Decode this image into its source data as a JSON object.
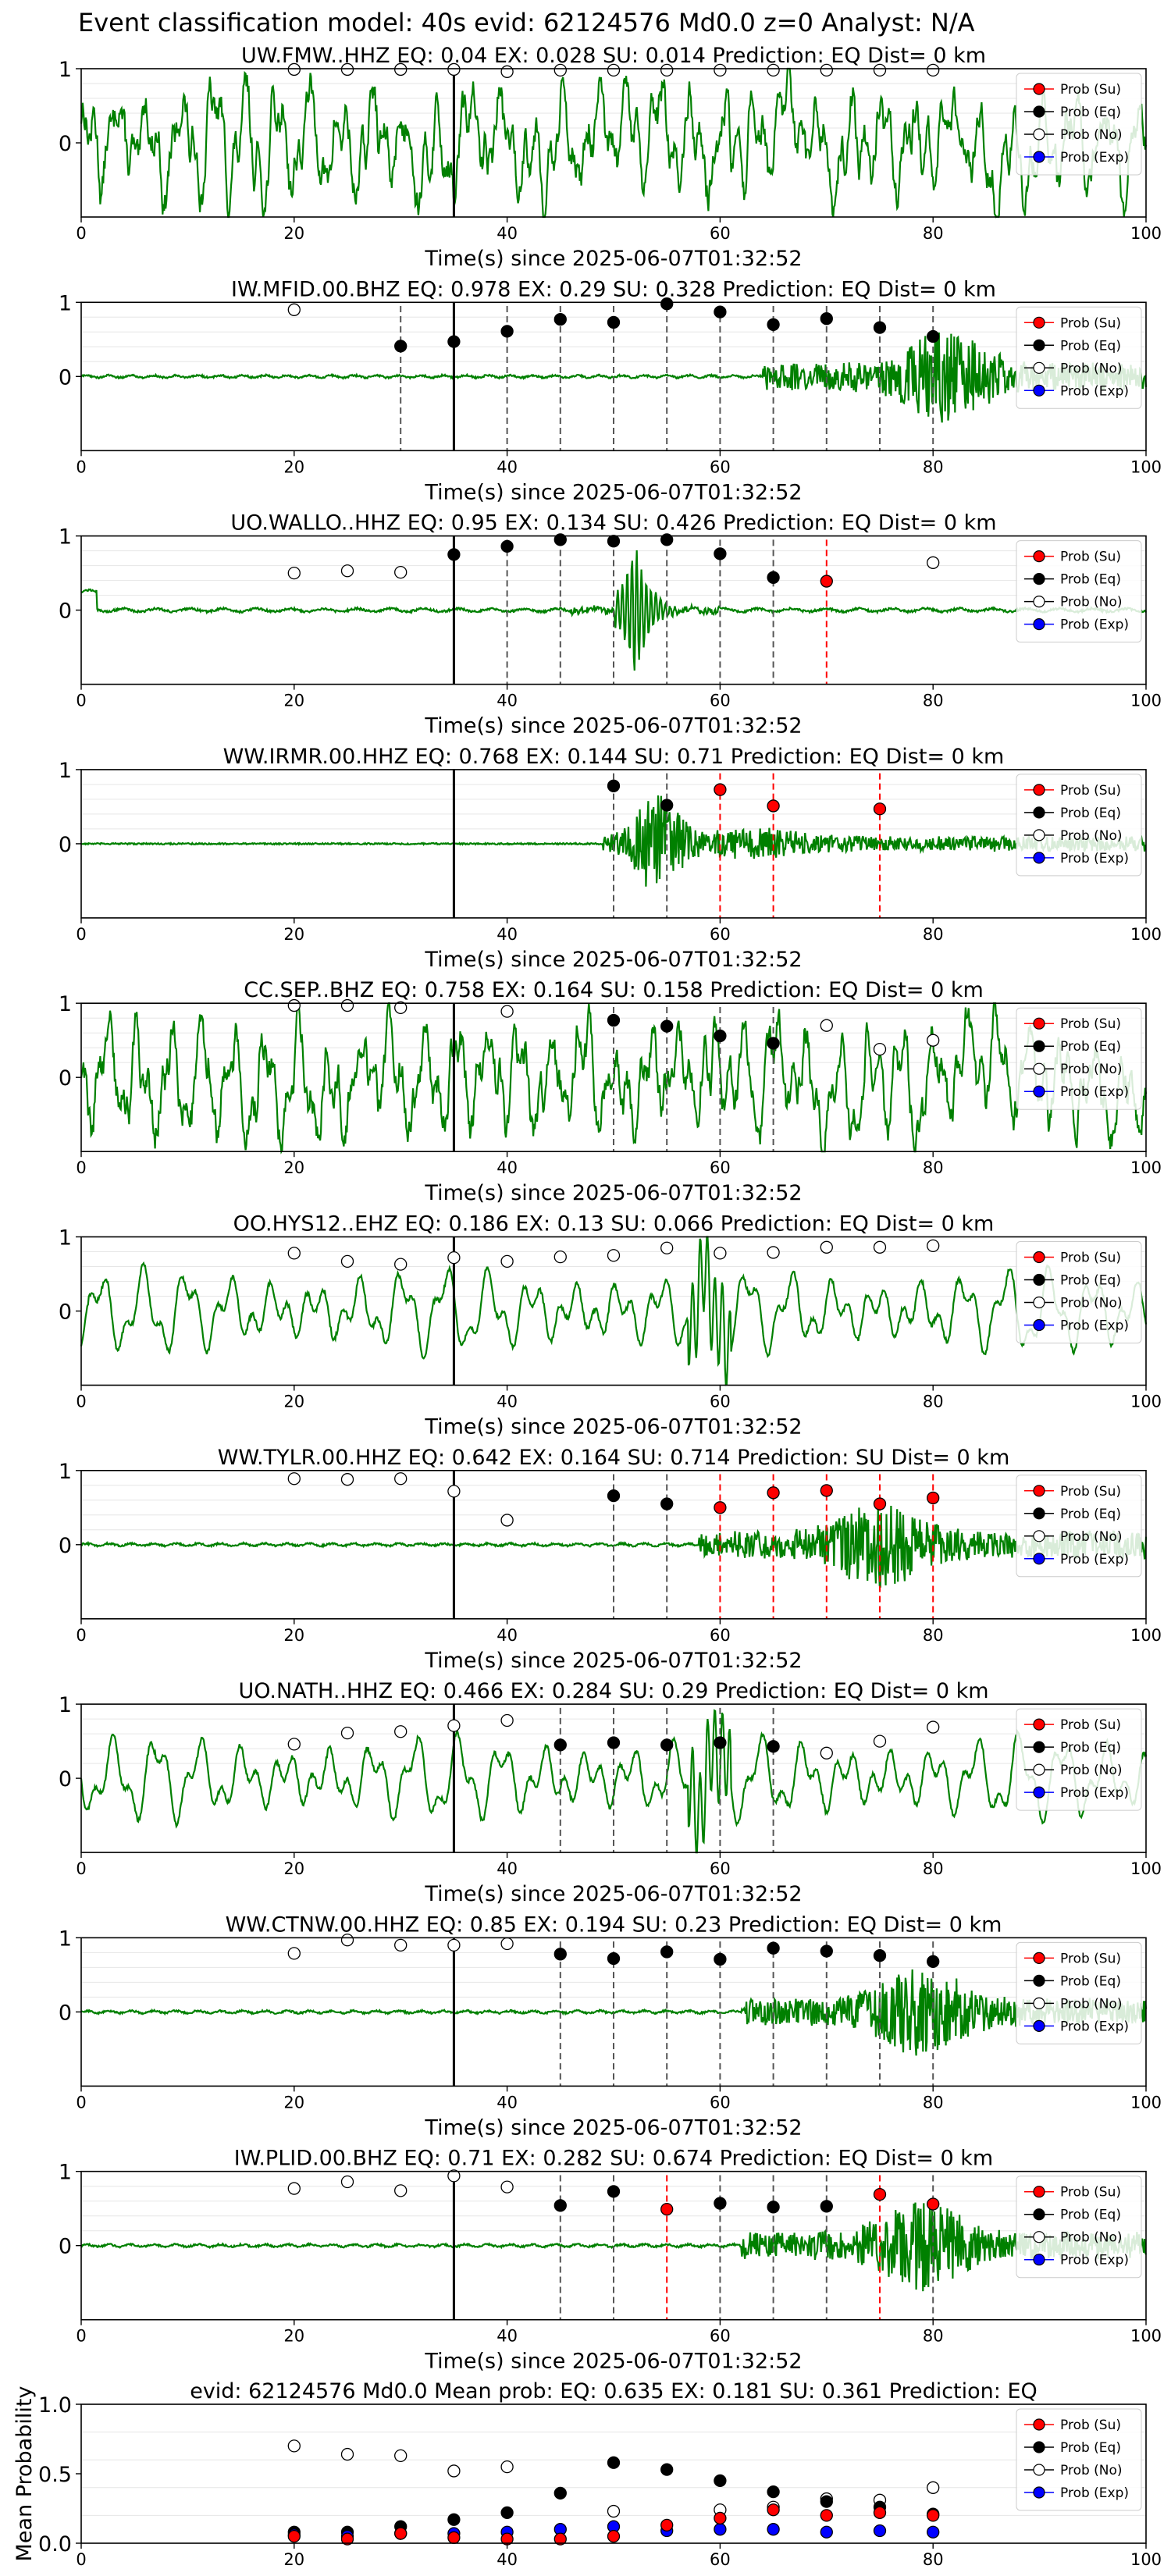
{
  "figure": {
    "title": "Event classification model: 40s evid: 62124576 Md0.0 z=0 Analyst: N/A"
  },
  "legend": {
    "entries": [
      "Prob (Su)",
      "Prob (Eq)",
      "Prob (No)",
      "Prob (Exp)"
    ]
  },
  "colors": {
    "su": "#ff0000",
    "eq": "#000000",
    "no": "#ffffff",
    "exp": "#0000ff",
    "waveform": "#008000",
    "grid": "#e6e6e6",
    "su_line": "#ff0000",
    "eq_line": "#555555"
  },
  "chart_data": [
    {
      "type": "line",
      "title": "UW.FMW..HHZ   EQ: 0.04  EX: 0.028  SU: 0.014   Prediction: EQ    Dist= 0 km",
      "xlabel": "Time(s) since 2025-06-07T01:32:52",
      "ylabel": "",
      "xlim": [
        0,
        100
      ],
      "xticks": [
        0,
        20,
        40,
        60,
        80,
        100
      ],
      "yticks": [
        1,
        0
      ],
      "ylim": [
        -1,
        1
      ],
      "waveform_style": "noisy_high",
      "onset": 0,
      "p_pick": 35,
      "eq_lines": [],
      "su_lines": [],
      "points": [
        {
          "t": 20,
          "cls": "no",
          "p": 0.99
        },
        {
          "t": 25,
          "cls": "no",
          "p": 0.99
        },
        {
          "t": 30,
          "cls": "no",
          "p": 0.99
        },
        {
          "t": 35,
          "cls": "no",
          "p": 0.99
        },
        {
          "t": 40,
          "cls": "no",
          "p": 0.96
        },
        {
          "t": 45,
          "cls": "no",
          "p": 0.98
        },
        {
          "t": 50,
          "cls": "no",
          "p": 0.98
        },
        {
          "t": 55,
          "cls": "no",
          "p": 0.98
        },
        {
          "t": 60,
          "cls": "no",
          "p": 0.98
        },
        {
          "t": 65,
          "cls": "no",
          "p": 0.98
        },
        {
          "t": 70,
          "cls": "no",
          "p": 0.98
        },
        {
          "t": 75,
          "cls": "no",
          "p": 0.98
        },
        {
          "t": 80,
          "cls": "no",
          "p": 0.98
        }
      ]
    },
    {
      "type": "line",
      "title": "IW.MFID.00.BHZ   EQ: 0.978  EX: 0.29  SU: 0.328   Prediction: EQ    Dist= 0 km",
      "xlabel": "Time(s) since 2025-06-07T01:32:52",
      "ylabel": "",
      "xlim": [
        0,
        100
      ],
      "xticks": [
        0,
        20,
        40,
        60,
        80,
        100
      ],
      "yticks": [
        1,
        0
      ],
      "ylim": [
        -1,
        1
      ],
      "waveform_style": "quiet_then_burst",
      "onset": 64,
      "p_pick": 35,
      "eq_lines": [
        30,
        40,
        45,
        50,
        55,
        60,
        65,
        70,
        75,
        80
      ],
      "su_lines": [],
      "points": [
        {
          "t": 20,
          "cls": "no",
          "p": 0.9
        },
        {
          "t": 30,
          "cls": "eq",
          "p": 0.41
        },
        {
          "t": 35,
          "cls": "eq",
          "p": 0.47
        },
        {
          "t": 40,
          "cls": "eq",
          "p": 0.61
        },
        {
          "t": 45,
          "cls": "eq",
          "p": 0.77
        },
        {
          "t": 50,
          "cls": "eq",
          "p": 0.73
        },
        {
          "t": 55,
          "cls": "eq",
          "p": 0.98
        },
        {
          "t": 60,
          "cls": "eq",
          "p": 0.87
        },
        {
          "t": 65,
          "cls": "eq",
          "p": 0.7
        },
        {
          "t": 70,
          "cls": "eq",
          "p": 0.78
        },
        {
          "t": 75,
          "cls": "eq",
          "p": 0.66
        },
        {
          "t": 80,
          "cls": "eq",
          "p": 0.54
        }
      ]
    },
    {
      "type": "line",
      "title": "UO.WALLO..HHZ   EQ: 0.95  EX: 0.134  SU: 0.426   Prediction: EQ    Dist= 0 km",
      "xlabel": "Time(s) since 2025-06-07T01:32:52",
      "ylabel": "",
      "xlim": [
        0,
        100
      ],
      "xticks": [
        0,
        20,
        40,
        60,
        80,
        100
      ],
      "yticks": [
        1,
        0
      ],
      "ylim": [
        -1,
        1
      ],
      "waveform_style": "spike",
      "onset": 50,
      "p_pick": 35,
      "eq_lines": [
        40,
        45,
        50,
        55,
        60,
        65
      ],
      "su_lines": [
        70
      ],
      "points": [
        {
          "t": 20,
          "cls": "no",
          "p": 0.5
        },
        {
          "t": 25,
          "cls": "no",
          "p": 0.53
        },
        {
          "t": 30,
          "cls": "no",
          "p": 0.51
        },
        {
          "t": 35,
          "cls": "eq",
          "p": 0.75
        },
        {
          "t": 40,
          "cls": "eq",
          "p": 0.86
        },
        {
          "t": 45,
          "cls": "eq",
          "p": 0.95
        },
        {
          "t": 50,
          "cls": "eq",
          "p": 0.93
        },
        {
          "t": 55,
          "cls": "eq",
          "p": 0.95
        },
        {
          "t": 60,
          "cls": "eq",
          "p": 0.76
        },
        {
          "t": 65,
          "cls": "eq",
          "p": 0.44
        },
        {
          "t": 70,
          "cls": "su",
          "p": 0.39
        },
        {
          "t": 80,
          "cls": "no",
          "p": 0.64
        }
      ]
    },
    {
      "type": "line",
      "title": "WW.IRMR.00.HHZ   EQ: 0.768  EX: 0.144  SU: 0.71   Prediction: EQ    Dist= 0 km",
      "xlabel": "Time(s) since 2025-06-07T01:32:52",
      "ylabel": "",
      "xlim": [
        0,
        100
      ],
      "xticks": [
        0,
        20,
        40,
        60,
        80,
        100
      ],
      "yticks": [
        1,
        0
      ],
      "ylim": [
        -1,
        1
      ],
      "waveform_style": "burst_mid",
      "onset": 49,
      "p_pick": 35,
      "eq_lines": [
        50,
        55
      ],
      "su_lines": [
        60,
        65,
        75
      ],
      "points": [
        {
          "t": 50,
          "cls": "eq",
          "p": 0.78
        },
        {
          "t": 55,
          "cls": "eq",
          "p": 0.52
        },
        {
          "t": 60,
          "cls": "su",
          "p": 0.73
        },
        {
          "t": 65,
          "cls": "su",
          "p": 0.51
        },
        {
          "t": 75,
          "cls": "su",
          "p": 0.47
        }
      ]
    },
    {
      "type": "line",
      "title": "CC.SEP..BHZ   EQ: 0.758  EX: 0.164  SU: 0.158   Prediction: EQ    Dist= 0 km",
      "xlabel": "Time(s) since 2025-06-07T01:32:52",
      "ylabel": "",
      "xlim": [
        0,
        100
      ],
      "xticks": [
        0,
        20,
        40,
        60,
        80,
        100
      ],
      "yticks": [
        1,
        0
      ],
      "ylim": [
        -1,
        1
      ],
      "waveform_style": "noisy_high",
      "onset": 0,
      "p_pick": 35,
      "eq_lines": [
        50,
        55,
        60,
        65
      ],
      "su_lines": [],
      "points": [
        {
          "t": 20,
          "cls": "no",
          "p": 0.97
        },
        {
          "t": 25,
          "cls": "no",
          "p": 0.97
        },
        {
          "t": 30,
          "cls": "no",
          "p": 0.94
        },
        {
          "t": 40,
          "cls": "no",
          "p": 0.89
        },
        {
          "t": 50,
          "cls": "eq",
          "p": 0.77
        },
        {
          "t": 55,
          "cls": "eq",
          "p": 0.69
        },
        {
          "t": 60,
          "cls": "eq",
          "p": 0.56
        },
        {
          "t": 65,
          "cls": "eq",
          "p": 0.46
        },
        {
          "t": 70,
          "cls": "no",
          "p": 0.7
        },
        {
          "t": 75,
          "cls": "no",
          "p": 0.38
        },
        {
          "t": 80,
          "cls": "no",
          "p": 0.5
        }
      ]
    },
    {
      "type": "line",
      "title": "OO.HYS12..EHZ   EQ: 0.186  EX: 0.13  SU: 0.066   Prediction: EQ    Dist= 0 km",
      "xlabel": "Time(s) since 2025-06-07T01:32:52",
      "ylabel": "",
      "xlim": [
        0,
        100
      ],
      "xticks": [
        0,
        20,
        40,
        60,
        80,
        100
      ],
      "yticks": [
        1,
        0
      ],
      "ylim": [
        -1,
        1
      ],
      "waveform_style": "smooth_osc",
      "onset": 0,
      "p_pick": 35,
      "eq_lines": [],
      "su_lines": [],
      "points": [
        {
          "t": 20,
          "cls": "no",
          "p": 0.78
        },
        {
          "t": 25,
          "cls": "no",
          "p": 0.67
        },
        {
          "t": 30,
          "cls": "no",
          "p": 0.63
        },
        {
          "t": 35,
          "cls": "no",
          "p": 0.72
        },
        {
          "t": 40,
          "cls": "no",
          "p": 0.67
        },
        {
          "t": 45,
          "cls": "no",
          "p": 0.73
        },
        {
          "t": 50,
          "cls": "no",
          "p": 0.75
        },
        {
          "t": 55,
          "cls": "no",
          "p": 0.85
        },
        {
          "t": 60,
          "cls": "no",
          "p": 0.78
        },
        {
          "t": 65,
          "cls": "no",
          "p": 0.79
        },
        {
          "t": 70,
          "cls": "no",
          "p": 0.86
        },
        {
          "t": 75,
          "cls": "no",
          "p": 0.86
        },
        {
          "t": 80,
          "cls": "no",
          "p": 0.88
        }
      ]
    },
    {
      "type": "line",
      "title": "WW.TYLR.00.HHZ   EQ: 0.642  EX: 0.164  SU: 0.714   Prediction: SU    Dist= 0 km",
      "xlabel": "Time(s) since 2025-06-07T01:32:52",
      "ylabel": "",
      "xlim": [
        0,
        100
      ],
      "xticks": [
        0,
        20,
        40,
        60,
        80,
        100
      ],
      "yticks": [
        1,
        0
      ],
      "ylim": [
        -1,
        1
      ],
      "waveform_style": "quiet_then_burst",
      "onset": 58,
      "p_pick": 35,
      "eq_lines": [
        50,
        55
      ],
      "su_lines": [
        60,
        65,
        70,
        75,
        80
      ],
      "points": [
        {
          "t": 20,
          "cls": "no",
          "p": 0.89
        },
        {
          "t": 25,
          "cls": "no",
          "p": 0.88
        },
        {
          "t": 30,
          "cls": "no",
          "p": 0.89
        },
        {
          "t": 35,
          "cls": "no",
          "p": 0.72
        },
        {
          "t": 40,
          "cls": "no",
          "p": 0.33
        },
        {
          "t": 50,
          "cls": "eq",
          "p": 0.66
        },
        {
          "t": 55,
          "cls": "eq",
          "p": 0.55
        },
        {
          "t": 60,
          "cls": "su",
          "p": 0.5
        },
        {
          "t": 65,
          "cls": "su",
          "p": 0.7
        },
        {
          "t": 70,
          "cls": "su",
          "p": 0.73
        },
        {
          "t": 75,
          "cls": "su",
          "p": 0.55
        },
        {
          "t": 80,
          "cls": "su",
          "p": 0.63
        }
      ]
    },
    {
      "type": "line",
      "title": "UO.NATH..HHZ   EQ: 0.466  EX: 0.284  SU: 0.29   Prediction: EQ    Dist= 0 km",
      "xlabel": "Time(s) since 2025-06-07T01:32:52",
      "ylabel": "",
      "xlim": [
        0,
        100
      ],
      "xticks": [
        0,
        20,
        40,
        60,
        80,
        100
      ],
      "yticks": [
        1,
        0
      ],
      "ylim": [
        -1,
        1
      ],
      "waveform_style": "smooth_osc",
      "onset": 0,
      "p_pick": 35,
      "eq_lines": [
        45,
        50,
        55,
        60,
        65
      ],
      "su_lines": [],
      "points": [
        {
          "t": 20,
          "cls": "no",
          "p": 0.46
        },
        {
          "t": 25,
          "cls": "no",
          "p": 0.61
        },
        {
          "t": 30,
          "cls": "no",
          "p": 0.63
        },
        {
          "t": 35,
          "cls": "no",
          "p": 0.71
        },
        {
          "t": 40,
          "cls": "no",
          "p": 0.78
        },
        {
          "t": 45,
          "cls": "eq",
          "p": 0.45
        },
        {
          "t": 50,
          "cls": "eq",
          "p": 0.48
        },
        {
          "t": 55,
          "cls": "eq",
          "p": 0.45
        },
        {
          "t": 60,
          "cls": "eq",
          "p": 0.48
        },
        {
          "t": 65,
          "cls": "eq",
          "p": 0.43
        },
        {
          "t": 70,
          "cls": "no",
          "p": 0.34
        },
        {
          "t": 75,
          "cls": "no",
          "p": 0.5
        },
        {
          "t": 80,
          "cls": "no",
          "p": 0.69
        }
      ]
    },
    {
      "type": "line",
      "title": "WW.CTNW.00.HHZ   EQ: 0.85  EX: 0.194  SU: 0.23   Prediction: EQ    Dist= 0 km",
      "xlabel": "Time(s) since 2025-06-07T01:32:52",
      "ylabel": "",
      "xlim": [
        0,
        100
      ],
      "xticks": [
        0,
        20,
        40,
        60,
        80,
        100
      ],
      "yticks": [
        1,
        0
      ],
      "ylim": [
        -1,
        1
      ],
      "waveform_style": "quiet_then_burst",
      "onset": 62,
      "p_pick": 35,
      "eq_lines": [
        45,
        50,
        55,
        60,
        65,
        70,
        75,
        80
      ],
      "su_lines": [],
      "points": [
        {
          "t": 20,
          "cls": "no",
          "p": 0.79
        },
        {
          "t": 25,
          "cls": "no",
          "p": 0.97
        },
        {
          "t": 30,
          "cls": "no",
          "p": 0.9
        },
        {
          "t": 35,
          "cls": "no",
          "p": 0.9
        },
        {
          "t": 40,
          "cls": "no",
          "p": 0.92
        },
        {
          "t": 45,
          "cls": "eq",
          "p": 0.78
        },
        {
          "t": 50,
          "cls": "eq",
          "p": 0.72
        },
        {
          "t": 55,
          "cls": "eq",
          "p": 0.81
        },
        {
          "t": 60,
          "cls": "eq",
          "p": 0.71
        },
        {
          "t": 65,
          "cls": "eq",
          "p": 0.86
        },
        {
          "t": 70,
          "cls": "eq",
          "p": 0.82
        },
        {
          "t": 75,
          "cls": "eq",
          "p": 0.76
        },
        {
          "t": 80,
          "cls": "eq",
          "p": 0.68
        }
      ]
    },
    {
      "type": "line",
      "title": "IW.PLID.00.BHZ   EQ: 0.71  EX: 0.282  SU: 0.674   Prediction: EQ    Dist= 0 km",
      "xlabel": "Time(s) since 2025-06-07T01:32:52",
      "ylabel": "",
      "xlim": [
        0,
        100
      ],
      "xticks": [
        0,
        20,
        40,
        60,
        80,
        100
      ],
      "yticks": [
        1,
        0
      ],
      "ylim": [
        -1,
        1
      ],
      "waveform_style": "quiet_then_burst",
      "onset": 62,
      "p_pick": 35,
      "eq_lines": [
        45,
        50,
        60,
        65,
        70,
        80
      ],
      "su_lines": [
        55,
        75
      ],
      "points": [
        {
          "t": 20,
          "cls": "no",
          "p": 0.77
        },
        {
          "t": 25,
          "cls": "no",
          "p": 0.86
        },
        {
          "t": 30,
          "cls": "no",
          "p": 0.74
        },
        {
          "t": 35,
          "cls": "no",
          "p": 0.94
        },
        {
          "t": 40,
          "cls": "no",
          "p": 0.79
        },
        {
          "t": 45,
          "cls": "eq",
          "p": 0.54
        },
        {
          "t": 50,
          "cls": "eq",
          "p": 0.73
        },
        {
          "t": 55,
          "cls": "su",
          "p": 0.49
        },
        {
          "t": 60,
          "cls": "eq",
          "p": 0.57
        },
        {
          "t": 65,
          "cls": "eq",
          "p": 0.52
        },
        {
          "t": 70,
          "cls": "eq",
          "p": 0.53
        },
        {
          "t": 75,
          "cls": "su",
          "p": 0.69
        },
        {
          "t": 80,
          "cls": "su",
          "p": 0.56
        }
      ]
    },
    {
      "type": "scatter",
      "title": "evid: 62124576  Md0.0   Mean prob:   EQ: 0.635  EX: 0.181  SU: 0.361   Prediction: EQ",
      "xlabel": "",
      "ylabel": "Mean Probability",
      "xlim": [
        0,
        100
      ],
      "xticks": [
        0,
        20,
        40,
        60,
        80,
        100
      ],
      "yticks": [
        0.0,
        0.5,
        1.0
      ],
      "ylim": [
        0,
        1
      ],
      "series": [
        {
          "name": "Prob (No)",
          "cls": "no",
          "x": [
            20,
            25,
            30,
            35,
            40,
            50,
            60,
            65,
            70,
            75,
            80
          ],
          "y": [
            0.7,
            0.64,
            0.63,
            0.52,
            0.55,
            0.23,
            0.24,
            0.26,
            0.32,
            0.31,
            0.4
          ]
        },
        {
          "name": "Prob (Eq)",
          "cls": "eq",
          "x": [
            20,
            25,
            30,
            35,
            40,
            45,
            50,
            55,
            60,
            65,
            70,
            75,
            80
          ],
          "y": [
            0.08,
            0.08,
            0.12,
            0.17,
            0.22,
            0.36,
            0.58,
            0.53,
            0.45,
            0.37,
            0.3,
            0.26,
            0.21
          ]
        },
        {
          "name": "Prob (Exp)",
          "cls": "exp",
          "x": [
            20,
            25,
            30,
            35,
            40,
            45,
            50,
            55,
            60,
            65,
            70,
            75,
            80
          ],
          "y": [
            0.06,
            0.05,
            0.07,
            0.07,
            0.08,
            0.1,
            0.12,
            0.09,
            0.1,
            0.1,
            0.08,
            0.09,
            0.08
          ]
        },
        {
          "name": "Prob (Su)",
          "cls": "su",
          "x": [
            20,
            25,
            30,
            35,
            40,
            45,
            50,
            55,
            60,
            65,
            70,
            75,
            80
          ],
          "y": [
            0.05,
            0.03,
            0.07,
            0.04,
            0.03,
            0.03,
            0.05,
            0.13,
            0.18,
            0.24,
            0.2,
            0.22,
            0.2
          ]
        }
      ]
    }
  ]
}
